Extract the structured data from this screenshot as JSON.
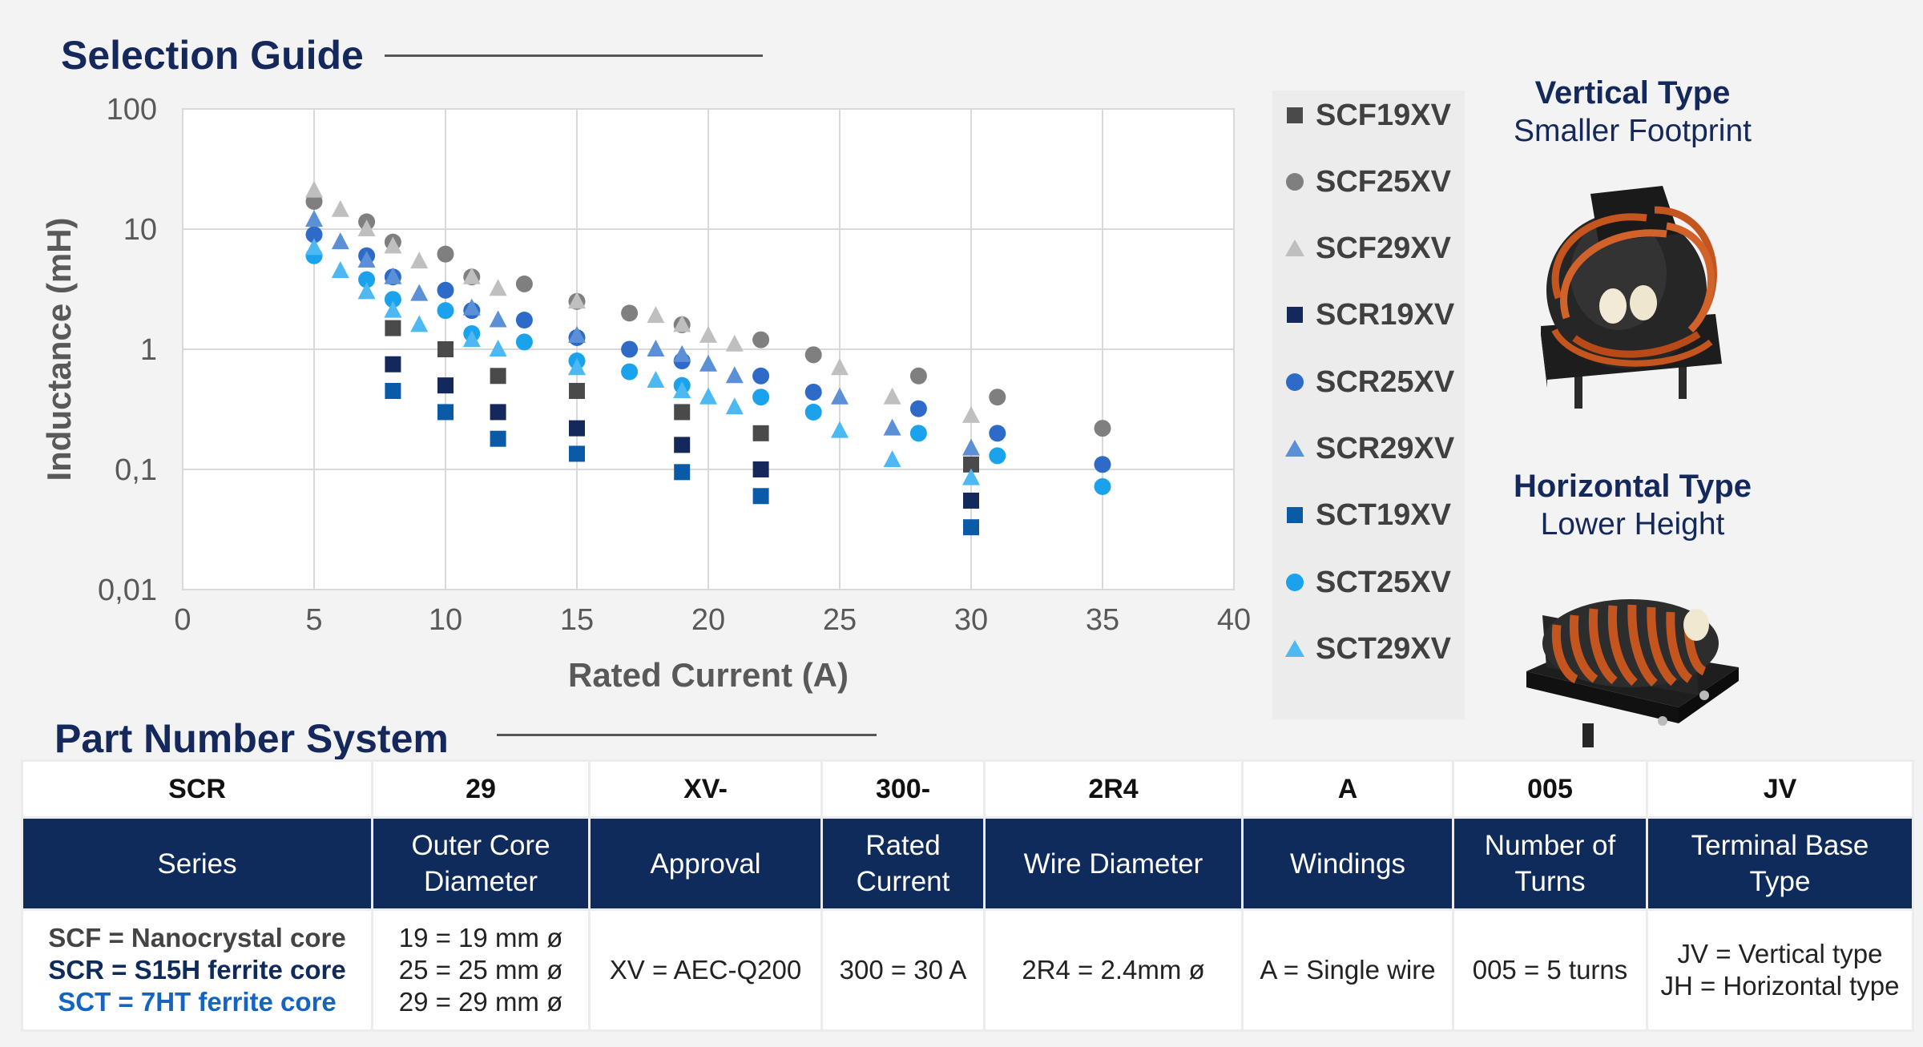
{
  "selection_title": "Selection Guide",
  "part_title": "Part Number System",
  "chart_data": {
    "type": "scatter",
    "xlabel": "Rated Current (A)",
    "ylabel": "Inductance (mH)",
    "xlim": [
      0,
      40
    ],
    "ylim": [
      0.01,
      100
    ],
    "y_scale": "log",
    "x_ticks": [
      "0",
      "5",
      "10",
      "15",
      "20",
      "25",
      "30",
      "35",
      "40"
    ],
    "y_ticks": [
      "0,01",
      "0,1",
      "1",
      "10",
      "100"
    ],
    "grid": true,
    "legend_position": "right",
    "series": [
      {
        "name": "SCF19XV",
        "marker": "square",
        "color": "#4a4a4a",
        "points": [
          [
            8,
            1.5
          ],
          [
            10,
            1.0
          ],
          [
            12,
            0.6
          ],
          [
            15,
            0.45
          ],
          [
            19,
            0.3
          ],
          [
            22,
            0.2
          ],
          [
            30,
            0.11
          ]
        ]
      },
      {
        "name": "SCF25XV",
        "marker": "circle",
        "color": "#7f7f7f",
        "points": [
          [
            5,
            17
          ],
          [
            7,
            11.5
          ],
          [
            8,
            7.8
          ],
          [
            10,
            6.2
          ],
          [
            11,
            4
          ],
          [
            13,
            3.5
          ],
          [
            15,
            2.5
          ],
          [
            17,
            2.0
          ],
          [
            19,
            1.6
          ],
          [
            22,
            1.2
          ],
          [
            24,
            0.9
          ],
          [
            28,
            0.6
          ],
          [
            31,
            0.4
          ],
          [
            35,
            0.22
          ]
        ]
      },
      {
        "name": "SCF29XV",
        "marker": "triangle",
        "color": "#bfbfbf",
        "points": [
          [
            5,
            21
          ],
          [
            6,
            14.5
          ],
          [
            7,
            10
          ],
          [
            8,
            7.2
          ],
          [
            9,
            5.4
          ],
          [
            11,
            4.0
          ],
          [
            12,
            3.2
          ],
          [
            15,
            2.5
          ],
          [
            18,
            1.9
          ],
          [
            19,
            1.6
          ],
          [
            20,
            1.3
          ],
          [
            21,
            1.1
          ],
          [
            25,
            0.7
          ],
          [
            27,
            0.4
          ],
          [
            30,
            0.28
          ]
        ]
      },
      {
        "name": "SCR19XV",
        "marker": "square",
        "color": "#14285c",
        "points": [
          [
            8,
            0.75
          ],
          [
            10,
            0.5
          ],
          [
            12,
            0.3
          ],
          [
            15,
            0.22
          ],
          [
            19,
            0.16
          ],
          [
            22,
            0.1
          ],
          [
            30,
            0.055
          ]
        ]
      },
      {
        "name": "SCR25XV",
        "marker": "circle",
        "color": "#2e6ac8",
        "points": [
          [
            5,
            9
          ],
          [
            7,
            6
          ],
          [
            8,
            4
          ],
          [
            10,
            3.1
          ],
          [
            11,
            2.1
          ],
          [
            13,
            1.75
          ],
          [
            15,
            1.25
          ],
          [
            17,
            1.0
          ],
          [
            19,
            0.8
          ],
          [
            22,
            0.6
          ],
          [
            24,
            0.44
          ],
          [
            28,
            0.32
          ],
          [
            31,
            0.2
          ],
          [
            35,
            0.11
          ]
        ]
      },
      {
        "name": "SCR29XV",
        "marker": "triangle",
        "color": "#5b8fd6",
        "points": [
          [
            5,
            12
          ],
          [
            6,
            7.8
          ],
          [
            7,
            5.5
          ],
          [
            8,
            4.0
          ],
          [
            9,
            2.9
          ],
          [
            11,
            2.2
          ],
          [
            12,
            1.75
          ],
          [
            15,
            1.3
          ],
          [
            18,
            1.0
          ],
          [
            19,
            0.9
          ],
          [
            20,
            0.75
          ],
          [
            21,
            0.6
          ],
          [
            25,
            0.4
          ],
          [
            27,
            0.22
          ],
          [
            30,
            0.15
          ]
        ]
      },
      {
        "name": "SCT19XV",
        "marker": "square",
        "color": "#0a5aa8",
        "points": [
          [
            8,
            0.45
          ],
          [
            10,
            0.3
          ],
          [
            12,
            0.18
          ],
          [
            15,
            0.135
          ],
          [
            19,
            0.095
          ],
          [
            22,
            0.06
          ],
          [
            30,
            0.033
          ]
        ]
      },
      {
        "name": "SCT25XV",
        "marker": "circle",
        "color": "#1aa3ec",
        "points": [
          [
            5,
            6
          ],
          [
            7,
            3.8
          ],
          [
            8,
            2.6
          ],
          [
            10,
            2.1
          ],
          [
            11,
            1.35
          ],
          [
            13,
            1.15
          ],
          [
            15,
            0.8
          ],
          [
            17,
            0.65
          ],
          [
            19,
            0.5
          ],
          [
            22,
            0.4
          ],
          [
            24,
            0.3
          ],
          [
            28,
            0.2
          ],
          [
            31,
            0.13
          ],
          [
            35,
            0.072
          ]
        ]
      },
      {
        "name": "SCT29XV",
        "marker": "triangle",
        "color": "#4db8f2",
        "points": [
          [
            5,
            7
          ],
          [
            6,
            4.5
          ],
          [
            7,
            3.0
          ],
          [
            8,
            2.1
          ],
          [
            9,
            1.6
          ],
          [
            11,
            1.2
          ],
          [
            12,
            1.0
          ],
          [
            15,
            0.7
          ],
          [
            18,
            0.55
          ],
          [
            19,
            0.45
          ],
          [
            20,
            0.4
          ],
          [
            21,
            0.33
          ],
          [
            25,
            0.21
          ],
          [
            27,
            0.12
          ],
          [
            30,
            0.085
          ]
        ]
      }
    ]
  },
  "vertical": {
    "title": "Vertical Type",
    "subtitle": "Smaller Footprint"
  },
  "horizontal": {
    "title": "Horizontal Type",
    "subtitle": "Lower Height"
  },
  "table": {
    "codes": [
      "SCR",
      "29",
      "XV-",
      "300-",
      "2R4",
      "A",
      "005",
      "JV"
    ],
    "headers": [
      [
        "Series"
      ],
      [
        "Outer Core",
        "Diameter"
      ],
      [
        "Approval"
      ],
      [
        "Rated",
        "Current"
      ],
      [
        "Wire Diameter"
      ],
      [
        "Windings"
      ],
      [
        "Number of",
        "Turns"
      ],
      [
        "Terminal Base",
        "Type"
      ]
    ],
    "series_desc": [
      "SCF = Nanocrystal core",
      "SCR = S15H ferrite core",
      "SCT = 7HT ferrite core"
    ],
    "diameter_desc": [
      "19 = 19 mm ø",
      "25 = 25 mm ø",
      "29 = 29 mm ø"
    ],
    "approval_desc": "XV = AEC-Q200",
    "current_desc": "300 = 30 A",
    "wire_desc": "2R4 = 2.4mm ø",
    "windings_desc": "A = Single wire",
    "turns_desc": "005 = 5 turns",
    "terminal_desc": [
      "JV = Vertical type",
      "JH = Horizontal type"
    ]
  }
}
